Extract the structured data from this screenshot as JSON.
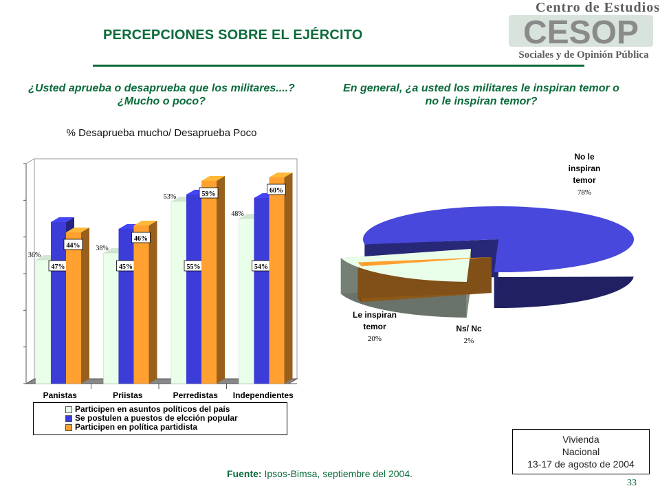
{
  "header": {
    "title": "PERCEPCIONES SOBRE EL EJÉRCITO",
    "logo_top": "Centro de Estudios",
    "logo_bottom": "Sociales y de Opinión Pública",
    "logo_mark": "CESOP"
  },
  "left_question": "¿Usted aprueba o desaprueba que los militares....? ¿Mucho o poco?",
  "left_subtitle": "% Desaprueba mucho/ Desaprueba Poco",
  "right_question": "En general, ¿a usted los militares le inspiran temor o no le inspiran temor?",
  "info_box": {
    "line1": "Vivienda",
    "line2": "Nacional",
    "line3": "13-17 de agosto de 2004"
  },
  "source": {
    "label": "Fuente:",
    "text": " Ipsos-Bimsa, septiembre del 2004."
  },
  "page_number": "33",
  "chart_data": [
    {
      "type": "bar",
      "categories": [
        "Panistas",
        "Priistas",
        "Perredistas",
        "Independientes"
      ],
      "series": [
        {
          "name": "Participen en asuntos políticos del país",
          "values": [
            36,
            38,
            53,
            48
          ],
          "labels": [
            "36%",
            "38%",
            "53%",
            "48%"
          ],
          "color": "#eaffea"
        },
        {
          "name": "Se postulen a puestos de elcción popular",
          "values": [
            47,
            45,
            55,
            54
          ],
          "labels": [
            "47%",
            "45%",
            "55%",
            "54%"
          ],
          "color": "#3c3cd8"
        },
        {
          "name": "Participen en política partidista",
          "values": [
            44,
            46,
            59,
            60
          ],
          "labels": [
            "44%",
            "46%",
            "59%",
            "60%"
          ],
          "color": "#ffa030"
        }
      ],
      "ylim": [
        0,
        60
      ],
      "grid": false,
      "legend": "bottom"
    },
    {
      "type": "pie",
      "slices": [
        {
          "label": "No le inspiran temor",
          "value": 78,
          "value_label": "78%",
          "color": "#4848dc"
        },
        {
          "label": "Le inspiran temor",
          "value": 20,
          "value_label": "20%",
          "color": "#eaffea"
        },
        {
          "label": "Ns/ Nc",
          "value": 2,
          "value_label": "2%",
          "color": "#ffa030"
        }
      ]
    }
  ]
}
